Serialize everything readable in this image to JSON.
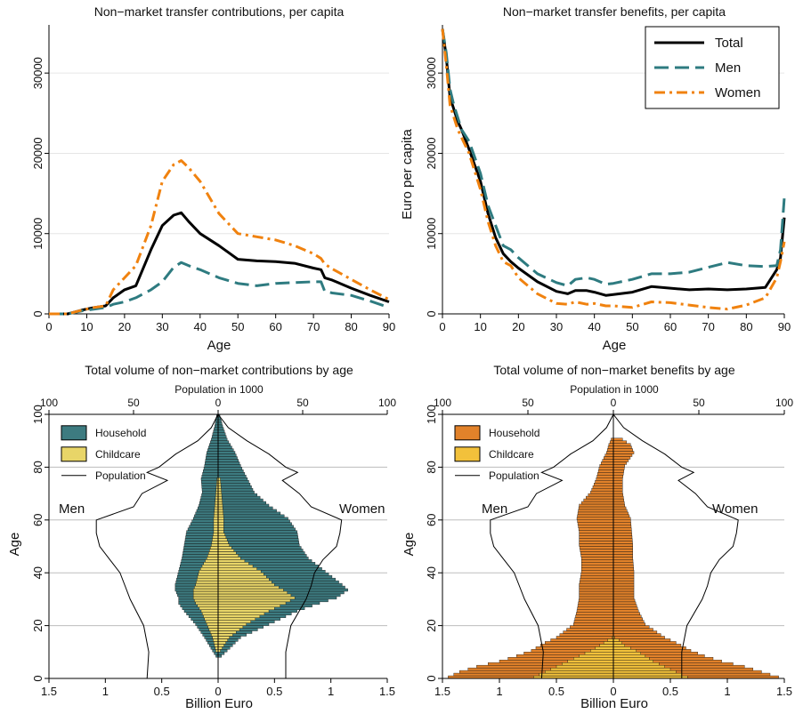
{
  "chart_data": [
    {
      "type": "line",
      "title": "Non−market transfer contributions, per capita",
      "xlabel": "Age",
      "ylabel": "",
      "xlim": [
        0,
        90
      ],
      "ylim": [
        0,
        36000
      ],
      "xticks": [
        "0",
        "10",
        "20",
        "30",
        "40",
        "50",
        "60",
        "70",
        "80",
        "90"
      ],
      "yticks": [
        "0",
        "10000",
        "20000",
        "30000"
      ],
      "grid": true,
      "series": [
        {
          "name": "Total",
          "color": "#000000",
          "style": "solid",
          "x": [
            0,
            5,
            9,
            12,
            15,
            17,
            20,
            23,
            27,
            30,
            33,
            35,
            37,
            40,
            45,
            50,
            55,
            60,
            65,
            70,
            72,
            73,
            75,
            80,
            85,
            90
          ],
          "y": [
            0,
            0,
            500,
            800,
            1000,
            2000,
            3000,
            3500,
            8000,
            11000,
            12300,
            12600,
            11500,
            10000,
            8500,
            6800,
            6600,
            6500,
            6300,
            5700,
            5500,
            4500,
            4200,
            3200,
            2300,
            1500
          ]
        },
        {
          "name": "Men",
          "color": "#2e7b80",
          "style": "dashed",
          "x": [
            0,
            5,
            9,
            12,
            15,
            17,
            20,
            23,
            27,
            30,
            33,
            35,
            37,
            40,
            45,
            50,
            55,
            60,
            65,
            70,
            72,
            73,
            75,
            80,
            85,
            90
          ],
          "y": [
            0,
            0,
            400,
            600,
            800,
            1200,
            1500,
            2000,
            3000,
            4000,
            5800,
            6400,
            6000,
            5500,
            4500,
            3800,
            3500,
            3800,
            3900,
            4000,
            4000,
            2800,
            2600,
            2300,
            1600,
            800
          ]
        },
        {
          "name": "Women",
          "color": "#f0820f",
          "style": "dashdot",
          "x": [
            0,
            5,
            9,
            12,
            15,
            17,
            20,
            23,
            27,
            30,
            33,
            35,
            37,
            40,
            45,
            50,
            55,
            60,
            65,
            70,
            72,
            73,
            75,
            80,
            85,
            90
          ],
          "y": [
            0,
            0,
            500,
            800,
            1000,
            3000,
            4500,
            6000,
            11000,
            16500,
            18600,
            19100,
            18200,
            16500,
            12500,
            10000,
            9600,
            9200,
            8500,
            7500,
            6900,
            6200,
            5600,
            4300,
            3000,
            1800
          ]
        }
      ]
    },
    {
      "type": "line",
      "title": "Non−market transfer benefits, per capita",
      "xlabel": "Age",
      "ylabel": "Euro per capita",
      "xlim": [
        0,
        90
      ],
      "ylim": [
        0,
        36000
      ],
      "xticks": [
        "0",
        "10",
        "20",
        "30",
        "40",
        "50",
        "60",
        "70",
        "80",
        "90"
      ],
      "yticks": [
        "0",
        "10000",
        "20000",
        "30000"
      ],
      "grid": true,
      "legend": {
        "position": "top-right",
        "entries": [
          "Total",
          "Men",
          "Women"
        ]
      },
      "series": [
        {
          "name": "Total",
          "color": "#000000",
          "style": "solid",
          "x": [
            0,
            1,
            2,
            3,
            4,
            5,
            7,
            10,
            12,
            14,
            16,
            18,
            20,
            25,
            30,
            33,
            35,
            38,
            40,
            43,
            45,
            50,
            55,
            60,
            65,
            70,
            75,
            80,
            85,
            88,
            89,
            90
          ],
          "y": [
            35500,
            32000,
            27000,
            25500,
            24000,
            23000,
            20500,
            16500,
            12500,
            9500,
            7500,
            6500,
            5700,
            4000,
            2800,
            2500,
            2900,
            2900,
            2700,
            2300,
            2400,
            2700,
            3400,
            3200,
            3000,
            3100,
            3000,
            3100,
            3300,
            5500,
            7000,
            12000
          ]
        },
        {
          "name": "Men",
          "color": "#2e7b80",
          "style": "dashed",
          "x": [
            0,
            1,
            2,
            3,
            4,
            5,
            7,
            10,
            12,
            14,
            16,
            18,
            20,
            25,
            30,
            33,
            35,
            38,
            40,
            43,
            45,
            50,
            55,
            60,
            65,
            70,
            75,
            80,
            85,
            88,
            89,
            90
          ],
          "y": [
            35500,
            32500,
            28000,
            26000,
            24500,
            23000,
            21500,
            17500,
            13500,
            11000,
            8500,
            8000,
            7000,
            5000,
            3900,
            3500,
            4300,
            4500,
            4300,
            3700,
            3800,
            4300,
            5000,
            5000,
            5200,
            5800,
            6400,
            6000,
            5900,
            6000,
            8000,
            14500
          ]
        },
        {
          "name": "Women",
          "color": "#f0820f",
          "style": "dashdot",
          "x": [
            0,
            1,
            2,
            3,
            4,
            5,
            7,
            10,
            12,
            14,
            16,
            18,
            20,
            25,
            30,
            33,
            35,
            38,
            40,
            43,
            45,
            50,
            55,
            60,
            65,
            70,
            75,
            80,
            85,
            88,
            89,
            90
          ],
          "y": [
            35500,
            31000,
            26000,
            24500,
            23000,
            22000,
            20000,
            15500,
            11500,
            8500,
            6500,
            6000,
            4500,
            2500,
            1300,
            1200,
            1500,
            1200,
            1300,
            1000,
            1000,
            800,
            1500,
            1400,
            1100,
            800,
            600,
            1100,
            2000,
            4500,
            6500,
            9000
          ]
        }
      ]
    },
    {
      "type": "bar",
      "orientation": "horizontal-pyramid",
      "title": "Total volume of non−market contributions by age",
      "xlabel": "Billion Euro",
      "ylabel": "Age",
      "x2label": "Population in 1000",
      "xlim": [
        -1.5,
        1.5
      ],
      "ylim": [
        0,
        100
      ],
      "xticks": [
        "1.5",
        "1",
        "0.5",
        "0",
        "0.5",
        "1",
        "1.5"
      ],
      "x2ticks": [
        "100",
        "50",
        "0",
        "50",
        "100"
      ],
      "yticks": [
        "0",
        "20",
        "40",
        "60",
        "80",
        "100"
      ],
      "side_labels": {
        "left": "Men",
        "right": "Women"
      },
      "legend": {
        "position": "top-left",
        "entries": [
          "Household",
          "Childcare",
          "Population"
        ]
      },
      "colors": {
        "household": "#3d7b80",
        "childcare": "#e8d568",
        "population": "#000000"
      },
      "series": [
        {
          "name": "Household",
          "age": [
            8,
            10,
            15,
            20,
            25,
            28,
            30,
            33,
            35,
            40,
            45,
            50,
            55,
            60,
            65,
            70,
            75,
            80,
            85,
            90,
            95,
            100
          ],
          "men": [
            0.02,
            0.05,
            0.12,
            0.2,
            0.3,
            0.35,
            0.35,
            0.38,
            0.38,
            0.35,
            0.32,
            0.3,
            0.28,
            0.22,
            0.17,
            0.14,
            0.15,
            0.12,
            0.1,
            0.06,
            0.03,
            0.01
          ],
          "women": [
            0.03,
            0.08,
            0.2,
            0.45,
            0.7,
            0.9,
            1.05,
            1.15,
            1.1,
            0.95,
            0.8,
            0.72,
            0.7,
            0.62,
            0.45,
            0.32,
            0.26,
            0.2,
            0.15,
            0.08,
            0.04,
            0.01
          ]
        },
        {
          "name": "Childcare",
          "age": [
            10,
            15,
            20,
            25,
            28,
            30,
            33,
            35,
            40,
            45,
            50,
            55,
            60,
            65,
            70,
            75
          ],
          "men": [
            0.02,
            0.05,
            0.1,
            0.15,
            0.2,
            0.22,
            0.22,
            0.2,
            0.17,
            0.1,
            0.06,
            0.04,
            0.04,
            0.03,
            0.02,
            0.01
          ],
          "women": [
            0.02,
            0.1,
            0.25,
            0.45,
            0.6,
            0.68,
            0.58,
            0.5,
            0.38,
            0.2,
            0.1,
            0.05,
            0.05,
            0.04,
            0.03,
            0.02
          ]
        },
        {
          "name": "Population",
          "age": [
            0,
            10,
            20,
            30,
            35,
            40,
            45,
            50,
            55,
            60,
            65,
            70,
            75,
            78,
            80,
            85,
            90,
            95,
            100
          ],
          "men_thousands": [
            42,
            41,
            44,
            52,
            55,
            58,
            64,
            70,
            72,
            72,
            50,
            45,
            30,
            42,
            35,
            25,
            12,
            4,
            0
          ],
          "women_thousands": [
            40,
            40,
            43,
            52,
            55,
            57,
            62,
            70,
            72,
            73,
            55,
            48,
            38,
            47,
            40,
            30,
            17,
            6,
            0
          ]
        }
      ]
    },
    {
      "type": "bar",
      "orientation": "horizontal-pyramid",
      "title": "Total volume of non−market benefits by age",
      "xlabel": "Billion Euro",
      "ylabel": "Age",
      "x2label": "Population in 1000",
      "xlim": [
        -1.5,
        1.5
      ],
      "ylim": [
        0,
        100
      ],
      "xticks": [
        "1.5",
        "1",
        "0.5",
        "0",
        "0.5",
        "1",
        "1.5"
      ],
      "x2ticks": [
        "100",
        "50",
        "0",
        "50",
        "100"
      ],
      "yticks": [
        "0",
        "20",
        "40",
        "60",
        "80",
        "100"
      ],
      "side_labels": {
        "left": "Men",
        "right": "Women"
      },
      "legend": {
        "position": "top-left",
        "entries": [
          "Household",
          "Childcare",
          "Population"
        ]
      },
      "colors": {
        "household": "#e2822a",
        "childcare": "#f2c13b",
        "population": "#000000"
      },
      "series": [
        {
          "name": "Household",
          "age": [
            0,
            2,
            4,
            6,
            8,
            10,
            13,
            15,
            20,
            25,
            30,
            35,
            40,
            45,
            50,
            55,
            60,
            65,
            70,
            75,
            80,
            85,
            88,
            90
          ],
          "men": [
            1.45,
            1.35,
            1.2,
            1.0,
            0.85,
            0.72,
            0.6,
            0.5,
            0.35,
            0.32,
            0.3,
            0.3,
            0.28,
            0.28,
            0.3,
            0.3,
            0.32,
            0.3,
            0.2,
            0.15,
            0.12,
            0.06,
            0.04,
            0.02
          ],
          "women": [
            1.45,
            1.3,
            1.15,
            0.95,
            0.8,
            0.68,
            0.55,
            0.45,
            0.28,
            0.22,
            0.18,
            0.18,
            0.18,
            0.17,
            0.17,
            0.16,
            0.15,
            0.1,
            0.08,
            0.08,
            0.1,
            0.18,
            0.15,
            0.08
          ]
        },
        {
          "name": "Childcare",
          "age": [
            0,
            2,
            4,
            6,
            8,
            10,
            12,
            14,
            15
          ],
          "men": [
            0.7,
            0.6,
            0.5,
            0.4,
            0.3,
            0.2,
            0.12,
            0.05,
            0.01
          ],
          "women": [
            0.65,
            0.55,
            0.45,
            0.35,
            0.28,
            0.2,
            0.1,
            0.05,
            0.01
          ]
        },
        {
          "name": "Population",
          "age": [
            0,
            10,
            20,
            30,
            35,
            40,
            45,
            50,
            55,
            60,
            65,
            70,
            75,
            78,
            80,
            85,
            90,
            95,
            100
          ],
          "men_thousands": [
            42,
            41,
            44,
            52,
            55,
            58,
            64,
            70,
            72,
            72,
            50,
            45,
            30,
            42,
            35,
            25,
            12,
            4,
            0
          ],
          "women_thousands": [
            40,
            40,
            43,
            52,
            55,
            57,
            62,
            70,
            72,
            73,
            55,
            48,
            38,
            47,
            40,
            30,
            17,
            6,
            0
          ]
        }
      ]
    }
  ]
}
